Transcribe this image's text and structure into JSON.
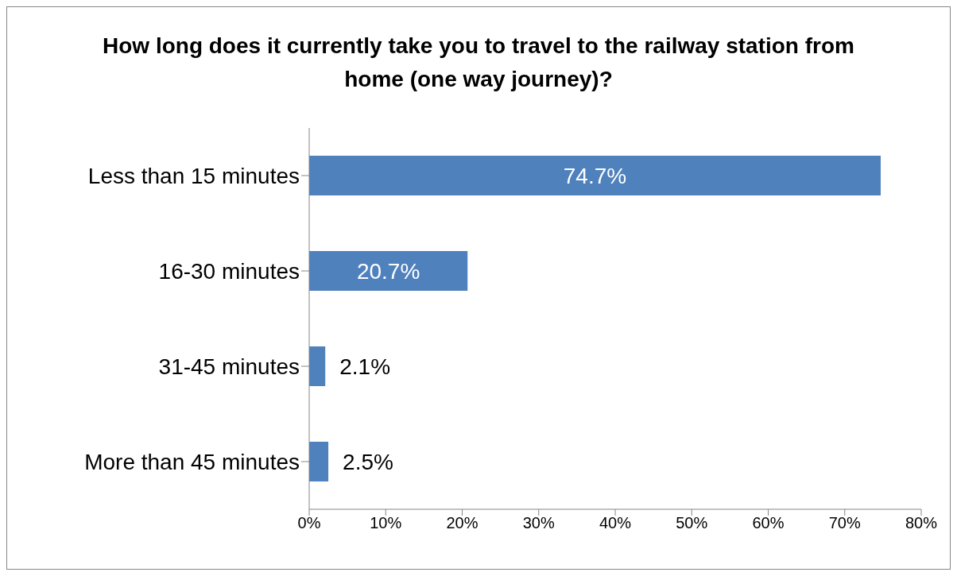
{
  "chart_data": {
    "type": "bar",
    "orientation": "horizontal",
    "title": "How long does it currently take you to travel to the railway station from home (one way journey)?",
    "categories": [
      "Less than 15 minutes",
      "16-30 minutes",
      "31-45 minutes",
      "More than 45 minutes"
    ],
    "values": [
      74.7,
      20.7,
      2.1,
      2.5
    ],
    "value_labels": [
      "74.7%",
      "20.7%",
      "2.1%",
      "2.5%"
    ],
    "color": "#4f81bd",
    "xlim": [
      0,
      80
    ],
    "xticks": [
      {
        "value": 0,
        "label": "0%"
      },
      {
        "value": 10,
        "label": "10%"
      },
      {
        "value": 20,
        "label": "20%"
      },
      {
        "value": 30,
        "label": "30%"
      },
      {
        "value": 40,
        "label": "40%"
      },
      {
        "value": 50,
        "label": "50%"
      },
      {
        "value": 60,
        "label": "60%"
      },
      {
        "value": 70,
        "label": "70%"
      },
      {
        "value": 80,
        "label": "80%"
      }
    ],
    "grid": false,
    "legend": false
  }
}
